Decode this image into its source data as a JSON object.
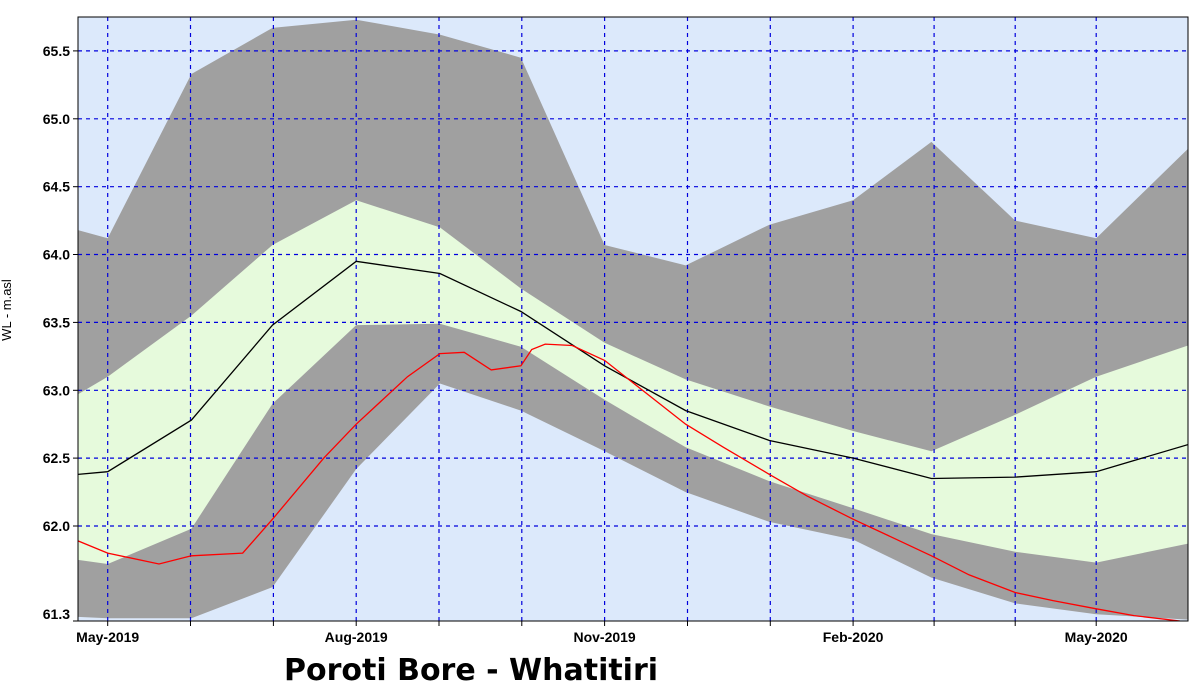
{
  "chart_data": {
    "type": "area",
    "title": "Poroti Bore - Whatitiri",
    "xlabel": "",
    "ylabel": "WL  -  m.asl",
    "ylim": [
      61.3,
      65.75
    ],
    "xlim": [
      "2019-04-20",
      "2020-06-04"
    ],
    "x_tick_labels": [
      "May-2019",
      "Aug-2019",
      "Nov-2019",
      "Feb-2020",
      "May-2020"
    ],
    "x_tick_dates": [
      "2019-05-01",
      "2019-08-01",
      "2019-11-01",
      "2020-02-01",
      "2020-05-01"
    ],
    "y_ticks": [
      61.3,
      62.0,
      62.5,
      63.0,
      63.5,
      64.0,
      64.5,
      65.0,
      65.5
    ],
    "y_tick_labels": [
      "61.3",
      "62.0",
      "62.5",
      "63.0",
      "63.5",
      "64.0",
      "64.5",
      "65.0",
      "65.5"
    ],
    "grid": true,
    "colors": {
      "plot_background": "#dce9fb",
      "outer_band": "#a0a0a0",
      "inner_band": "#e6fadc",
      "median_line": "#000000",
      "current_line": "#ff0000",
      "grid": "#0000dd"
    },
    "band_x": [
      "2019-04-20",
      "2019-05-01",
      "2019-06-01",
      "2019-07-01",
      "2019-08-01",
      "2019-09-01",
      "2019-10-01",
      "2019-11-01",
      "2019-12-01",
      "2020-01-01",
      "2020-02-01",
      "2020-03-01",
      "2020-04-01",
      "2020-05-01",
      "2020-06-04"
    ],
    "series": [
      {
        "role": "outer_band_max",
        "values": [
          64.18,
          64.12,
          65.33,
          65.67,
          65.73,
          65.62,
          65.45,
          64.07,
          63.92,
          64.22,
          64.4,
          64.83,
          64.25,
          64.12,
          64.78
        ]
      },
      {
        "role": "inner_band_max",
        "values": [
          62.97,
          63.1,
          63.55,
          64.07,
          64.4,
          64.2,
          63.75,
          63.35,
          63.08,
          62.88,
          62.7,
          62.55,
          62.82,
          63.1,
          63.33
        ]
      },
      {
        "role": "median",
        "values": [
          62.38,
          62.4,
          62.78,
          63.48,
          63.95,
          63.86,
          63.58,
          63.18,
          62.85,
          62.63,
          62.5,
          62.35,
          62.36,
          62.4,
          62.6
        ]
      },
      {
        "role": "inner_band_min",
        "values": [
          61.75,
          61.72,
          61.98,
          62.9,
          63.48,
          63.49,
          63.32,
          62.93,
          62.58,
          62.33,
          62.13,
          61.94,
          61.81,
          61.73,
          61.87
        ]
      },
      {
        "role": "outer_band_min",
        "values": [
          61.33,
          61.32,
          61.32,
          61.55,
          62.42,
          63.05,
          62.85,
          62.55,
          62.25,
          62.03,
          61.9,
          61.62,
          61.43,
          61.35,
          61.31
        ]
      }
    ],
    "current_x": [
      "2019-04-20",
      "2019-05-01",
      "2019-05-20",
      "2019-06-01",
      "2019-06-20",
      "2019-07-01",
      "2019-07-20",
      "2019-08-01",
      "2019-08-20",
      "2019-09-01",
      "2019-09-10",
      "2019-09-20",
      "2019-10-01",
      "2019-10-05",
      "2019-10-10",
      "2019-10-20",
      "2019-11-01",
      "2019-11-15",
      "2019-12-01",
      "2019-12-15",
      "2020-01-01",
      "2020-01-15",
      "2020-02-01",
      "2020-02-15",
      "2020-03-01",
      "2020-03-15",
      "2020-04-01",
      "2020-04-15",
      "2020-05-01",
      "2020-05-15",
      "2020-06-01"
    ],
    "current_values": [
      61.89,
      61.8,
      61.72,
      61.78,
      61.8,
      62.05,
      62.5,
      62.75,
      63.1,
      63.27,
      63.28,
      63.15,
      63.18,
      63.3,
      63.34,
      63.33,
      63.22,
      63.0,
      62.75,
      62.58,
      62.38,
      62.22,
      62.05,
      61.92,
      61.78,
      61.64,
      61.51,
      61.45,
      61.39,
      61.34,
      61.3
    ]
  }
}
